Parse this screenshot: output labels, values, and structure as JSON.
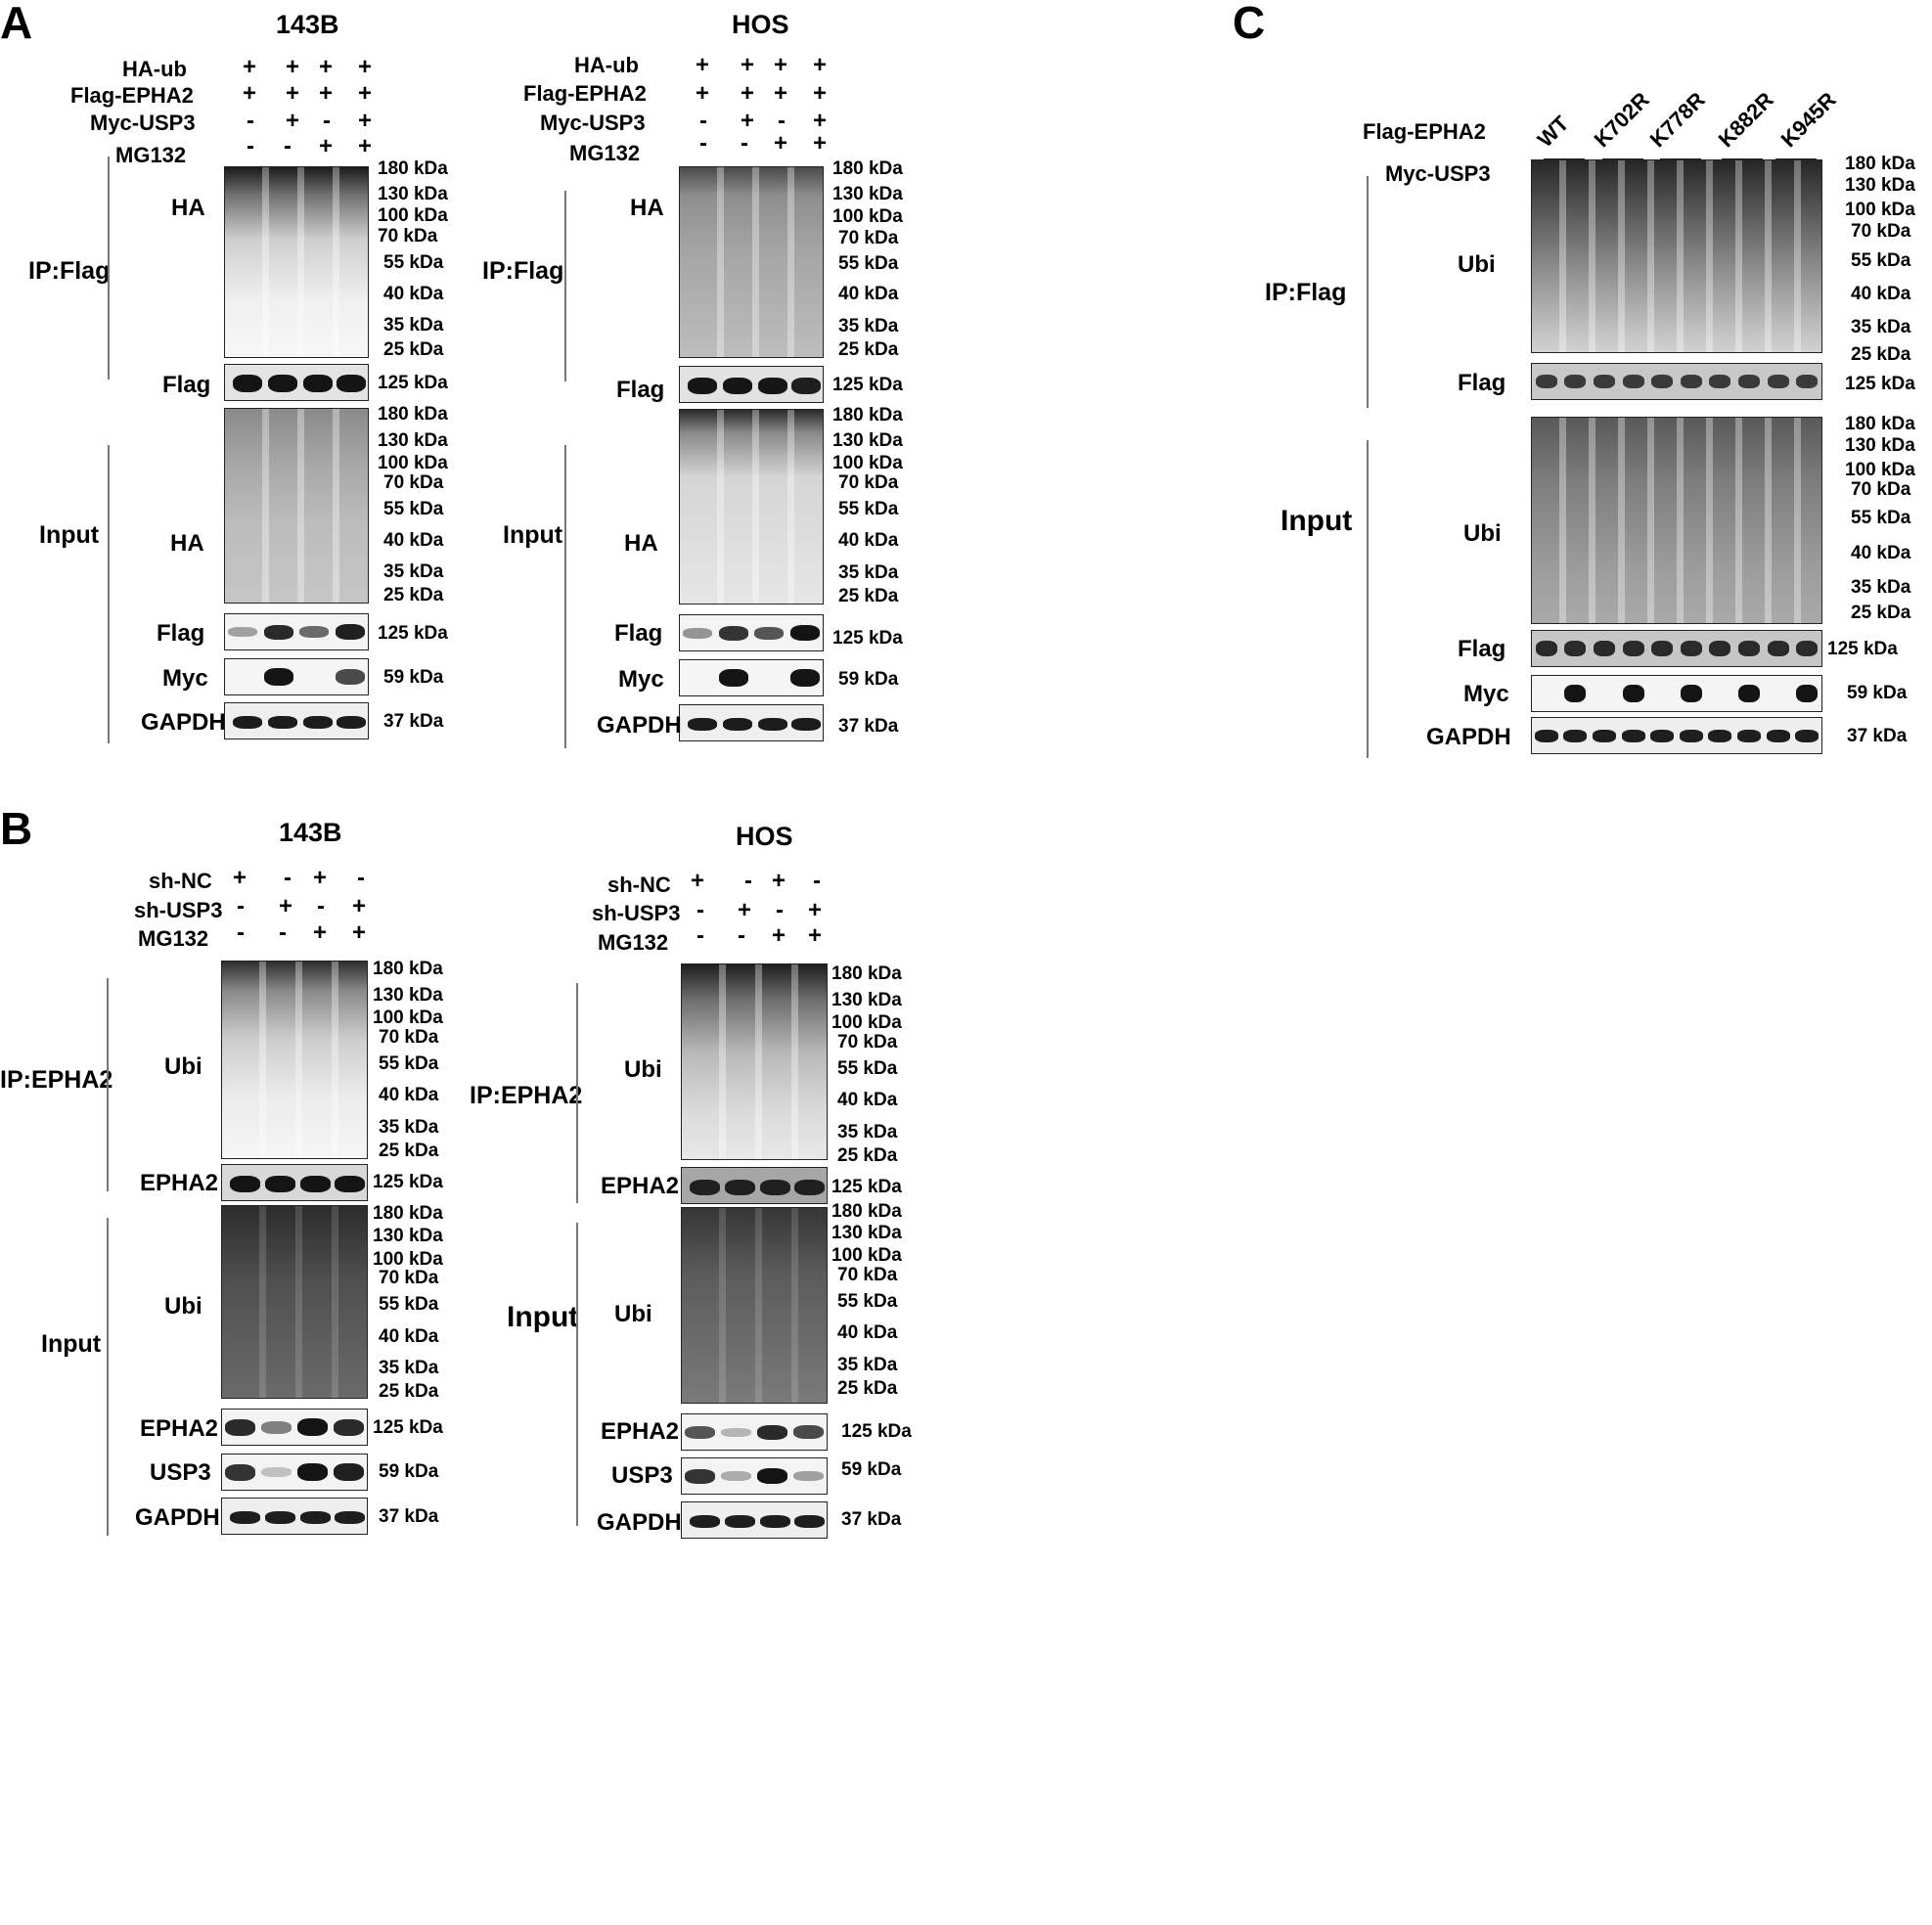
{
  "panels": {
    "A": "A",
    "B": "B",
    "C": "C"
  },
  "cells": {
    "c143b": "143B",
    "hos": "HOS"
  },
  "conditions": {
    "ha_ub": "HA-ub",
    "flag_epha2": "Flag-EPHA2",
    "myc_usp3": "Myc-USP3",
    "mg132": "MG132",
    "sh_nc": "sh-NC",
    "sh_usp3": "sh-USP3"
  },
  "signs": {
    "plus": "+",
    "minus": "-"
  },
  "sections": {
    "ip_flag": "IP:Flag",
    "ip_epha2": "IP:EPHA2",
    "input": "Input"
  },
  "antibodies": {
    "ha": "HA",
    "flag": "Flag",
    "myc": "Myc",
    "gapdh": "GAPDH",
    "ubi": "Ubi",
    "epha2": "EPHA2",
    "usp3": "USP3"
  },
  "mw": {
    "k180": "180 kDa",
    "k130": "130 kDa",
    "k100": "100 kDa",
    "k70": "70 kDa",
    "k55": "55 kDa",
    "k40": "40 kDa",
    "k35": "35 kDa",
    "k25": "25 kDa",
    "k125": "125 kDa",
    "k59": "59 kDa",
    "k37": "37 kDa"
  },
  "mutants": {
    "wt": "WT",
    "k702r": "K702R",
    "k778r": "K778R",
    "k882r": "K882R",
    "k945r": "K945R"
  },
  "band_intensity": {
    "A143B_input_flag": [
      0.35,
      0.9,
      0.6,
      0.95
    ],
    "A143B_myc": [
      0,
      1,
      0,
      0.75
    ],
    "AHOS_input_flag": [
      0.4,
      0.85,
      0.7,
      1
    ],
    "AHOS_myc": [
      0,
      1,
      0,
      1
    ],
    "B143B_input_epha2": [
      0.9,
      0.5,
      1,
      0.9
    ],
    "B143B_usp3": [
      0.85,
      0.2,
      1,
      0.95
    ],
    "BHOS_input_epha2": [
      0.7,
      0.25,
      0.9,
      0.75
    ],
    "BHOS_usp3": [
      0.85,
      0.3,
      1,
      0.35
    ],
    "C_myc": [
      0,
      1,
      0,
      1,
      0,
      1,
      0,
      1,
      0,
      1
    ]
  }
}
